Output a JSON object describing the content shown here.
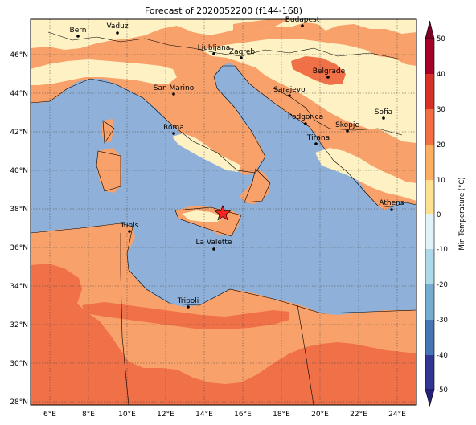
{
  "title": "Forecast of 2020052200 (f144-168)",
  "colorbar": {
    "label": "Min Temperature (°C)",
    "ticks": [
      "50",
      "40",
      "30",
      "20",
      "10",
      "0",
      "-10",
      "-20",
      "-30",
      "-40",
      "-50"
    ],
    "colors": [
      "#a50026",
      "#d73027",
      "#f46d43",
      "#fdae61",
      "#fee090",
      "#e0f3f8",
      "#abd9e9",
      "#74add1",
      "#4575b4",
      "#313695"
    ],
    "extend_colors": {
      "max": "#7f0026",
      "min": "#23207a"
    }
  },
  "x_ticks": [
    "6°E",
    "8°E",
    "10°E",
    "12°E",
    "14°E",
    "16°E",
    "18°E",
    "20°E",
    "22°E",
    "24°E"
  ],
  "y_ticks": [
    "46°N",
    "44°N",
    "42°N",
    "40°N",
    "38°N",
    "36°N",
    "34°N",
    "32°N",
    "30°N",
    "28°N"
  ],
  "fill_colors": {
    "sea": "#8fb1d9",
    "land_10_20": "#f9a16a",
    "land_0_10": "#fef2c4",
    "land_20_30": "#f07048"
  },
  "cities": [
    {
      "name": "Bern"
    },
    {
      "name": "Vaduz"
    },
    {
      "name": "Budapest"
    },
    {
      "name": "Ljubljana"
    },
    {
      "name": "Zagreb"
    },
    {
      "name": "Belgrade"
    },
    {
      "name": "San Marino"
    },
    {
      "name": "Sarajevo"
    },
    {
      "name": "Sofia"
    },
    {
      "name": "Podgorica"
    },
    {
      "name": "Skopje"
    },
    {
      "name": "Roma"
    },
    {
      "name": "Tirana"
    },
    {
      "name": "Athens"
    },
    {
      "name": "Tunis"
    },
    {
      "name": "La Valette"
    },
    {
      "name": "Tripoli"
    }
  ],
  "marker": {
    "icon": "red-star-icon"
  }
}
